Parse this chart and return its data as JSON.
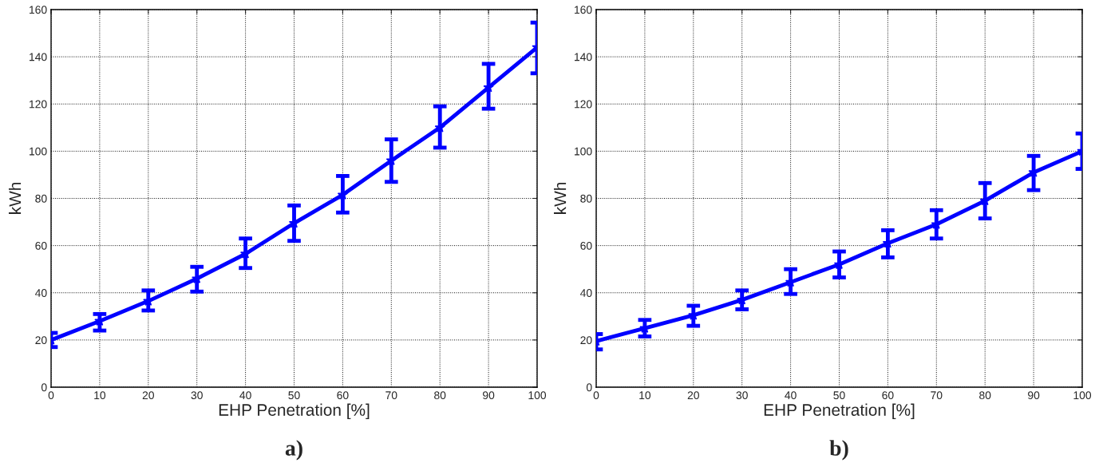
{
  "chart_data": [
    {
      "type": "line",
      "xlabel": "EHP Penetration [%]",
      "ylabel": "kWh",
      "annotations": [
        "a)"
      ],
      "x": [
        0,
        10,
        20,
        30,
        40,
        50,
        60,
        70,
        80,
        90,
        100
      ],
      "series": [
        {
          "color": "#0000ff",
          "values": [
            20,
            28,
            36.5,
            46,
            56.5,
            69.5,
            81.5,
            96,
            110,
            127,
            144
          ],
          "errors": [
            [
              17,
              23
            ],
            [
              24,
              31
            ],
            [
              32.5,
              41
            ],
            [
              40.5,
              51
            ],
            [
              50.5,
              63
            ],
            [
              62,
              77
            ],
            [
              74,
              89.5
            ],
            [
              87,
              105
            ],
            [
              101.5,
              119
            ],
            [
              118,
              137
            ],
            [
              133,
              154.5
            ]
          ]
        }
      ],
      "xlim": [
        0,
        100
      ],
      "xticks": [
        0,
        10,
        20,
        30,
        40,
        50,
        60,
        70,
        80,
        90,
        100
      ],
      "ylim": [
        0,
        160
      ],
      "yticks": [
        0,
        20,
        40,
        60,
        80,
        100,
        120,
        140,
        160
      ],
      "grid": true,
      "marker": "star",
      "line_style": "solid"
    },
    {
      "type": "line",
      "xlabel": "EHP Penetration [%]",
      "ylabel": "kWh",
      "annotations": [
        "b)"
      ],
      "x": [
        0,
        10,
        20,
        30,
        40,
        50,
        60,
        70,
        80,
        90,
        100
      ],
      "series": [
        {
          "color": "#0000ff",
          "values": [
            19.5,
            25,
            30.5,
            37,
            44.5,
            52,
            61,
            69,
            79,
            91,
            100
          ],
          "errors": [
            [
              16,
              22.5
            ],
            [
              21.5,
              28.5
            ],
            [
              26,
              34.5
            ],
            [
              33,
              41
            ],
            [
              39.5,
              50
            ],
            [
              46.5,
              57.5
            ],
            [
              55,
              66.5
            ],
            [
              63,
              75
            ],
            [
              71.5,
              86.5
            ],
            [
              83.5,
              98
            ],
            [
              92.5,
              107.5
            ]
          ]
        }
      ],
      "xlim": [
        0,
        100
      ],
      "xticks": [
        0,
        10,
        20,
        30,
        40,
        50,
        60,
        70,
        80,
        90,
        100
      ],
      "ylim": [
        0,
        160
      ],
      "yticks": [
        0,
        20,
        40,
        60,
        80,
        100,
        120,
        140,
        160
      ],
      "grid": true,
      "marker": "star",
      "line_style": "solid"
    }
  ]
}
